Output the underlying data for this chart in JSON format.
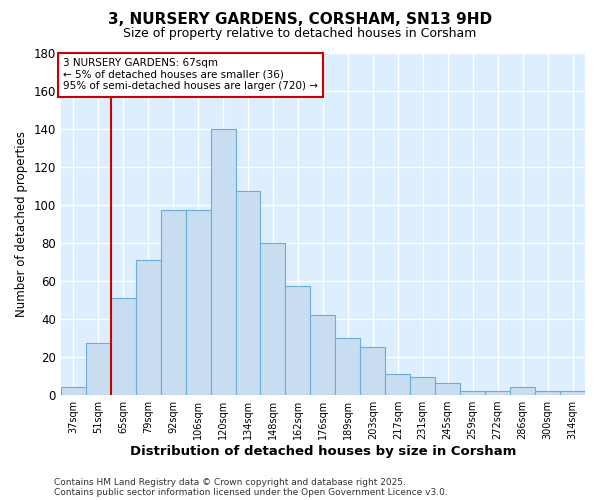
{
  "title1": "3, NURSERY GARDENS, CORSHAM, SN13 9HD",
  "title2": "Size of property relative to detached houses in Corsham",
  "xlabel": "Distribution of detached houses by size in Corsham",
  "ylabel": "Number of detached properties",
  "categories": [
    "37sqm",
    "51sqm",
    "65sqm",
    "79sqm",
    "92sqm",
    "106sqm",
    "120sqm",
    "134sqm",
    "148sqm",
    "162sqm",
    "176sqm",
    "189sqm",
    "203sqm",
    "217sqm",
    "231sqm",
    "245sqm",
    "259sqm",
    "272sqm",
    "286sqm",
    "300sqm",
    "314sqm"
  ],
  "values": [
    4,
    27,
    51,
    71,
    97,
    97,
    140,
    107,
    80,
    57,
    42,
    30,
    25,
    11,
    9,
    6,
    2,
    2,
    4,
    2,
    2
  ],
  "bar_color": "#c9ddf0",
  "bar_edge_color": "#6aaed6",
  "red_line_x": 2,
  "annotation_text": "3 NURSERY GARDENS: 67sqm\n← 5% of detached houses are smaller (36)\n95% of semi-detached houses are larger (720) →",
  "annotation_box_color": "#ffffff",
  "annotation_edge_color": "#cc0000",
  "ylim": [
    0,
    180
  ],
  "yticks": [
    0,
    20,
    40,
    60,
    80,
    100,
    120,
    140,
    160,
    180
  ],
  "bg_color": "#ffffff",
  "axes_bg_color": "#ddeeff",
  "grid_color": "#ffffff",
  "footer1": "Contains HM Land Registry data © Crown copyright and database right 2025.",
  "footer2": "Contains public sector information licensed under the Open Government Licence v3.0."
}
